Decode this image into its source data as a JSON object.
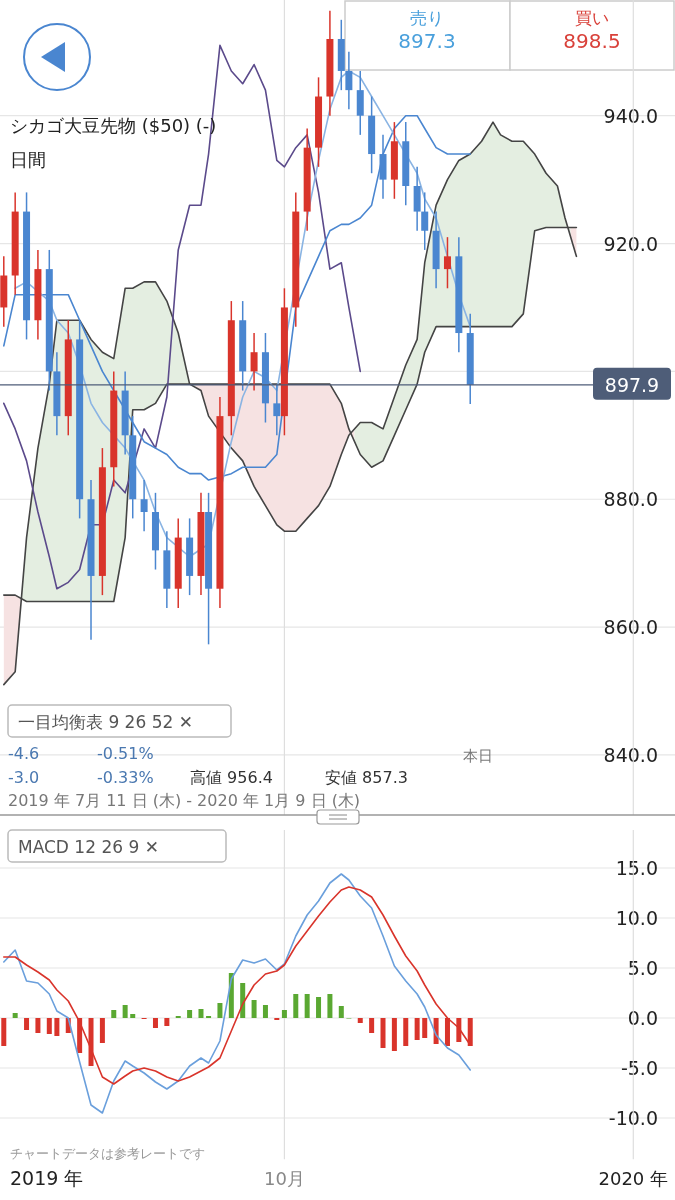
{
  "chart_data": [
    {
      "type": "candlestick",
      "title": "シカゴ大豆先物 ($50) (-)",
      "subtitle": "日間",
      "x": [
        "2019-07-19",
        "2019-07-22",
        "2019-07-25",
        "2019-07-28",
        "2019-07-31",
        "2019-08-02",
        "2019-08-05",
        "2019-08-08",
        "2019-08-11",
        "2019-08-14",
        "2019-08-17",
        "2019-08-20",
        "2019-08-22",
        "2019-08-25",
        "2019-08-28",
        "2019-08-31",
        "2019-09-03",
        "2019-09-06",
        "2019-09-09",
        "2019-09-11",
        "2019-09-14",
        "2019-09-17",
        "2019-09-20",
        "2019-09-23",
        "2019-09-26",
        "2019-09-29",
        "2019-10-01",
        "2019-10-04",
        "2019-10-07",
        "2019-10-10",
        "2019-10-13",
        "2019-10-16",
        "2019-10-18",
        "2019-10-21",
        "2019-10-24",
        "2019-10-27",
        "2019-10-30",
        "2019-11-02",
        "2019-11-05",
        "2019-11-07",
        "2019-11-10",
        "2019-11-13",
        "2019-11-16",
        "2019-11-19"
      ],
      "ohlc": [
        [
          910,
          918,
          907,
          915
        ],
        [
          915,
          928,
          912,
          925
        ],
        [
          925,
          928,
          905,
          908
        ],
        [
          908,
          919,
          905,
          916
        ],
        [
          916,
          919,
          897,
          900
        ],
        [
          900,
          903,
          890,
          893
        ],
        [
          893,
          908,
          890,
          905
        ],
        [
          905,
          908,
          877,
          880
        ],
        [
          880,
          883,
          858,
          868
        ],
        [
          868,
          888,
          865,
          885
        ],
        [
          885,
          900,
          882,
          897
        ],
        [
          897,
          900,
          887,
          890
        ],
        [
          890,
          893,
          877,
          880
        ],
        [
          880,
          883,
          875,
          878
        ],
        [
          878,
          881,
          869,
          872
        ],
        [
          872,
          875,
          863,
          866
        ],
        [
          866,
          877,
          863,
          874
        ],
        [
          874,
          877,
          865,
          868
        ],
        [
          868,
          881,
          865,
          878
        ],
        [
          878,
          881,
          857.3,
          866
        ],
        [
          866,
          896,
          863,
          893
        ],
        [
          893,
          911,
          890,
          908
        ],
        [
          908,
          911,
          897,
          900
        ],
        [
          900,
          906,
          897,
          903
        ],
        [
          903,
          906,
          892,
          895
        ],
        [
          895,
          898,
          890,
          893
        ],
        [
          893,
          913,
          890,
          910
        ],
        [
          910,
          928,
          907,
          925
        ],
        [
          925,
          938,
          922,
          935
        ],
        [
          935,
          946,
          932,
          943
        ],
        [
          943,
          956.4,
          940,
          952
        ],
        [
          952,
          955,
          944,
          947
        ],
        [
          947,
          950,
          941,
          944
        ],
        [
          944,
          947,
          937,
          940
        ],
        [
          940,
          943,
          931,
          934
        ],
        [
          934,
          937,
          927,
          930
        ],
        [
          930,
          939,
          927,
          936
        ],
        [
          936,
          939,
          926,
          929
        ],
        [
          929,
          932,
          922,
          925
        ],
        [
          925,
          928,
          919,
          922
        ],
        [
          922,
          925,
          913,
          916
        ],
        [
          916,
          921,
          913,
          918
        ],
        [
          918,
          921,
          903,
          906
        ],
        [
          906,
          909,
          894.9,
          897.9
        ]
      ],
      "colors": [
        "#d9342b",
        "#d9342b",
        "#4a86d0",
        "#d9342b",
        "#4a86d0",
        "#4a86d0",
        "#d9342b",
        "#4a86d0",
        "#4a86d0",
        "#d9342b",
        "#d9342b",
        "#4a86d0",
        "#4a86d0",
        "#4a86d0",
        "#4a86d0",
        "#4a86d0",
        "#d9342b",
        "#4a86d0",
        "#d9342b",
        "#4a86d0",
        "#d9342b",
        "#d9342b",
        "#4a86d0",
        "#d9342b",
        "#4a86d0",
        "#4a86d0",
        "#d9342b",
        "#d9342b",
        "#d9342b",
        "#d9342b",
        "#d9342b",
        "#4a86d0",
        "#4a86d0",
        "#4a86d0",
        "#4a86d0",
        "#4a86d0",
        "#d9342b",
        "#4a86d0",
        "#4a86d0",
        "#4a86d0",
        "#4a86d0",
        "#d9342b",
        "#4a86d0",
        "#4a86d0"
      ],
      "series": [
        {
          "type": "line",
          "color": "#444444",
          "x": [
            "2019-07-19",
            "2019-07-22",
            "2019-07-25",
            "2019-07-28",
            "2019-07-31",
            "2019-08-02",
            "2019-08-05",
            "2019-08-08",
            "2019-08-11",
            "2019-08-14",
            "2019-08-17",
            "2019-08-20",
            "2019-08-22",
            "2019-08-25",
            "2019-08-28",
            "2019-08-31",
            "2019-09-03",
            "2019-09-06",
            "2019-09-09",
            "2019-09-11",
            "2019-09-14",
            "2019-09-17",
            "2019-09-20",
            "2019-09-23",
            "2019-09-26",
            "2019-09-29",
            "2019-10-01",
            "2019-10-04",
            "2019-10-07",
            "2019-10-10",
            "2019-10-13",
            "2019-10-16",
            "2019-10-18",
            "2019-10-21",
            "2019-10-24",
            "2019-10-27",
            "2019-10-30",
            "2019-11-02",
            "2019-11-05",
            "2019-11-07",
            "2019-11-10",
            "2019-11-13",
            "2019-11-16",
            "2019-11-19",
            "2019-11-22",
            "2019-11-25",
            "2019-11-27",
            "2019-11-30",
            "2019-12-03",
            "2019-12-06",
            "2019-12-09",
            "2019-12-12",
            "2019-12-14",
            "2019-12-17"
          ],
          "values": [
            851,
            853,
            874,
            888,
            898,
            908,
            908,
            908,
            905,
            903,
            902,
            913,
            913,
            914,
            914,
            911,
            906,
            898,
            897,
            893,
            null,
            888,
            886,
            882,
            879,
            876,
            875,
            875,
            877,
            879,
            882,
            887,
            890,
            892,
            892,
            891,
            896,
            901,
            905,
            917,
            926,
            930,
            933,
            934,
            936,
            939,
            937,
            936,
            936,
            934,
            931,
            929,
            924,
            918
          ],
          "colors": [
            "#f6e2e2",
            "#f6e2e2",
            "#e4eee1",
            "#e4eee1",
            "#e4eee1",
            "#e4eee1",
            "#e4eee1",
            "#e4eee1",
            "#e4eee1",
            "#e4eee1",
            "#e4eee1",
            "#e4eee1",
            "#e4eee1",
            "#e4eee1",
            "#e4eee1",
            "#e4eee1",
            "#e4eee1",
            "#e4eee1",
            "#f6e2e2",
            "#f6e2e2",
            "#f6e2e2",
            "#f6e2e2",
            "#f6e2e2",
            "#f6e2e2",
            "#f6e2e2",
            "#f6e2e2",
            "#f6e2e2",
            "#f6e2e2",
            "#f6e2e2",
            "#f6e2e2",
            "#f6e2e2",
            "#f6e2e2",
            "#f6e2e2",
            "#e4eee1",
            "#e4eee1",
            "#e4eee1",
            "#e4eee1",
            "#e4eee1",
            "#e4eee1",
            "#e4eee1",
            "#e4eee1",
            "#e4eee1",
            "#e4eee1",
            "#e4eee1",
            "#e4eee1",
            "#e4eee1",
            "#e4eee1",
            "#e4eee1",
            "#e4eee1",
            "#e4eee1",
            "#e4eee1",
            "#e4eee1",
            "#e4eee1",
            "#f6e2e2"
          ]
        },
        {
          "type": "line",
          "color": "#444444",
          "x": [
            "2019-07-19",
            "2019-07-22",
            "2019-07-25",
            "2019-07-28",
            "2019-07-31",
            "2019-08-02",
            "2019-08-05",
            "2019-08-08",
            "2019-08-11",
            "2019-08-14",
            "2019-08-17",
            "2019-08-20",
            "2019-08-22",
            "2019-08-25",
            "2019-08-28",
            "2019-08-31",
            "2019-09-03",
            "2019-09-06",
            "2019-09-09",
            "2019-09-11",
            "2019-09-14",
            "2019-09-17",
            "2019-09-20",
            "2019-09-23",
            "2019-09-26",
            "2019-09-29",
            "2019-10-01",
            "2019-10-04",
            "2019-10-07",
            "2019-10-10",
            "2019-10-13",
            "2019-10-16",
            "2019-10-18",
            "2019-10-21",
            "2019-10-24",
            "2019-10-27",
            "2019-10-30",
            "2019-11-02",
            "2019-11-05",
            "2019-11-07",
            "2019-11-10",
            "2019-11-13",
            "2019-11-16",
            "2019-11-19",
            "2019-11-22",
            "2019-11-25",
            "2019-11-27",
            "2019-11-30",
            "2019-12-03",
            "2019-12-06",
            "2019-12-09",
            "2019-12-12",
            "2019-12-14",
            "2019-12-17"
          ],
          "values": [
            865,
            865,
            864,
            864,
            864,
            864,
            864,
            864,
            864,
            864,
            864,
            874,
            894,
            894,
            895,
            898,
            898,
            898,
            898,
            898,
            898,
            898,
            898,
            898,
            898,
            898,
            898,
            898,
            898,
            898,
            898,
            895,
            891,
            887,
            885,
            886,
            890,
            894,
            898,
            903,
            907,
            907,
            907,
            907,
            907,
            907,
            907,
            907,
            909,
            922,
            922.5,
            922.5,
            922.5,
            922.5
          ]
        },
        {
          "type": "line",
          "color": "#5b4a8b",
          "x": [
            "2019-07-19",
            "2019-07-22",
            "2019-07-25",
            "2019-07-28",
            "2019-07-31",
            "2019-08-02",
            "2019-08-05",
            "2019-08-08",
            "2019-08-11",
            "2019-08-14",
            "2019-08-17",
            "2019-08-20",
            "2019-08-22",
            "2019-08-25",
            "2019-08-28",
            "2019-08-31",
            "2019-09-03",
            "2019-09-06",
            "2019-09-09",
            "2019-09-11",
            "2019-09-14",
            "2019-09-17",
            "2019-09-20",
            "2019-09-23",
            "2019-09-26",
            "2019-09-29",
            "2019-10-01",
            "2019-10-04",
            "2019-10-07",
            "2019-10-10",
            "2019-10-13",
            "2019-10-16",
            "2019-10-18",
            "2019-10-21"
          ],
          "values": [
            895,
            891,
            886,
            878,
            871,
            866,
            867,
            869,
            876,
            876,
            883,
            881,
            null,
            891,
            888,
            896,
            919,
            926,
            926,
            934,
            951,
            947,
            945,
            948,
            944,
            933,
            932,
            935,
            937,
            928,
            916,
            917,
            910,
            900
          ]
        },
        {
          "type": "line",
          "color": "#4a86d0",
          "values": [
            904,
            912,
            912,
            912,
            912,
            912,
            912,
            908,
            904,
            900,
            null,
            894,
            892,
            889,
            888,
            887,
            885,
            884,
            884,
            883,
            null,
            884,
            885,
            885,
            885,
            887,
            null,
            910,
            914,
            918,
            922,
            923,
            923,
            924,
            926,
            934,
            938,
            940,
            940,
            938,
            935,
            934,
            934,
            934
          ]
        },
        {
          "type": "line",
          "color": "#8ab4e3",
          "values": [
            null,
            913,
            914,
            null,
            911,
            908,
            906,
            901,
            895,
            892,
            890,
            888,
            886,
            883,
            878,
            874,
            null,
            871,
            null,
            873,
            null,
            889,
            896,
            900,
            899,
            897,
            null,
            null,
            924,
            933,
            941,
            946,
            947,
            946,
            943,
            940,
            937,
            934,
            931,
            927,
            924,
            918,
            912,
            907
          ]
        }
      ],
      "xlim": [
        "2019-07-18",
        "2020-01-12"
      ],
      "xticks": [
        {
          "value": "2019-10-01",
          "label": null
        },
        {
          "value": "2020-01-01",
          "label": null
        }
      ],
      "ylim": [
        830.6,
        958.1
      ],
      "yticks": [
        {
          "value": 840,
          "label": "840.0"
        },
        {
          "value": 860,
          "label": "860.0"
        },
        {
          "value": 880,
          "label": "880.0"
        },
        {
          "value": 900,
          "label": null
        },
        {
          "value": 920,
          "label": "920.0"
        },
        {
          "value": 940,
          "label": "940.0"
        }
      ],
      "grid": true,
      "tick_labels": "y",
      "ref_lines": [
        {
          "axis": "y",
          "value": 897.9,
          "label": "897.9",
          "color": "#4e5d78"
        }
      ],
      "annotations": [
        "売り",
        "897.3",
        "買い",
        "898.5",
        "一目均衡表  9  26  52  ✕",
        "-4.6",
        "-0.51%",
        "-3.0",
        "-0.33%",
        "高値 956.4",
        "安値 857.3",
        "2019 年 7月 11 日 (木) - 2020 年 1月 9 日 (木)",
        "本日"
      ]
    },
    {
      "type": "bar",
      "x": [
        "2019-07-19",
        "2019-07-22",
        "2019-07-25",
        "2019-07-28",
        "2019-07-31",
        "2019-08-02",
        "2019-08-05",
        "2019-08-08",
        "2019-08-11",
        "2019-08-14",
        "2019-08-17",
        "2019-08-20",
        "2019-08-22",
        "2019-08-25",
        "2019-08-28",
        "2019-08-31",
        "2019-09-03",
        "2019-09-06",
        "2019-09-09",
        "2019-09-11",
        "2019-09-14",
        "2019-09-17",
        "2019-09-20",
        "2019-09-23",
        "2019-09-26",
        "2019-09-29",
        "2019-10-01",
        "2019-10-04",
        "2019-10-07",
        "2019-10-10",
        "2019-10-13",
        "2019-10-16",
        "2019-10-18",
        "2019-10-21",
        "2019-10-24",
        "2019-10-27",
        "2019-10-30",
        "2019-11-02",
        "2019-11-05",
        "2019-11-07",
        "2019-11-10",
        "2019-11-13",
        "2019-11-16",
        "2019-11-19"
      ],
      "series": [
        {
          "type": "bar",
          "values": [
            -2.8,
            0.5,
            -1.2,
            -1.5,
            -1.6,
            -1.8,
            -1.5,
            -3.5,
            -4.8,
            -2.5,
            0.8,
            1.3,
            0.4,
            -0.1,
            -1.0,
            -0.8,
            0.2,
            0.8,
            0.9,
            0.2,
            1.5,
            4.5,
            3.5,
            1.8,
            1.3,
            -0.2,
            0.8,
            2.4,
            2.4,
            2.1,
            2.4,
            1.2,
            0.0,
            -0.5,
            -1.5,
            -3.0,
            -3.3,
            -2.8,
            -2.2,
            -2.0,
            -2.6,
            -2.8,
            -2.4,
            -2.8
          ],
          "colors": [
            "#d9342b",
            "#5aa832",
            "#d9342b",
            "#d9342b",
            "#d9342b",
            "#d9342b",
            "#d9342b",
            "#d9342b",
            "#d9342b",
            "#d9342b",
            "#5aa832",
            "#5aa832",
            "#5aa832",
            "#d9342b",
            "#d9342b",
            "#d9342b",
            "#5aa832",
            "#5aa832",
            "#5aa832",
            "#5aa832",
            "#5aa832",
            "#5aa832",
            "#5aa832",
            "#5aa832",
            "#5aa832",
            "#d9342b",
            "#5aa832",
            "#5aa832",
            "#5aa832",
            "#5aa832",
            "#5aa832",
            "#5aa832",
            "#5aa832",
            "#d9342b",
            "#d9342b",
            "#d9342b",
            "#d9342b",
            "#d9342b",
            "#d9342b",
            "#d9342b",
            "#d9342b",
            "#d9342b",
            "#d9342b",
            "#d9342b"
          ]
        },
        {
          "type": "line",
          "color": "#6a9fdc",
          "values": [
            5.6,
            6.8,
            3.7,
            3.5,
            2.4,
            0.7,
            0.0,
            -4.4,
            -8.7,
            -9.5,
            -6.3,
            -4.3,
            -4.8,
            -5.5,
            -6.4,
            -7.1,
            -6.3,
            -4.8,
            -4.0,
            -4.5,
            -2.3,
            3.9,
            5.8,
            5.5,
            5.9,
            4.8,
            5.4,
            8.2,
            10.3,
            11.7,
            13.5,
            14.4,
            13.8,
            12.2,
            11.0,
            8.2,
            5.2,
            3.7,
            2.4,
            1.1,
            -1.7,
            -3.0,
            -3.7,
            -5.2
          ]
        },
        {
          "type": "line",
          "color": "#d9342b",
          "values": [
            6.1,
            6.1,
            5.3,
            4.6,
            3.8,
            2.8,
            1.7,
            -0.4,
            -3.1,
            -5.9,
            -6.6,
            -5.8,
            -5.3,
            -5.0,
            -5.3,
            -5.9,
            -6.3,
            -5.9,
            -5.3,
            -4.9,
            -4.0,
            -1.3,
            1.4,
            3.3,
            4.4,
            4.7,
            5.3,
            7.2,
            8.7,
            10.2,
            11.6,
            12.8,
            13.1,
            12.8,
            12.1,
            10.3,
            8.2,
            6.2,
            4.7,
            3.3,
            1.4,
            0.0,
            -1.0,
            -2.7
          ]
        }
      ],
      "xlim": [
        "2019-07-18",
        "2020-01-12"
      ],
      "xticks": [
        {
          "value": "2019-10-01",
          "label": "10月"
        },
        {
          "value": "2020-01-01",
          "label": "2020 年"
        }
      ],
      "ylim": [
        -14.2,
        18.8
      ],
      "yticks": [
        {
          "value": -10,
          "label": "-10.0"
        },
        {
          "value": -5,
          "label": "-5.0"
        },
        {
          "value": 0,
          "label": "0.0"
        },
        {
          "value": 5,
          "label": "5.0"
        },
        {
          "value": 10,
          "label": "10.0"
        },
        {
          "value": 15,
          "label": "15.0"
        }
      ],
      "grid": true,
      "annotations": [
        "MACD  12  26  9  ✕",
        "チャートデータは参考レートです",
        "2019 年"
      ]
    }
  ]
}
